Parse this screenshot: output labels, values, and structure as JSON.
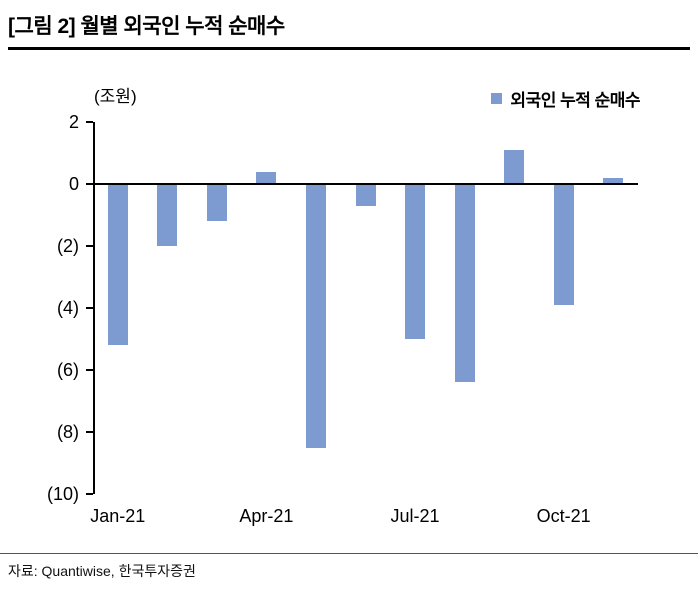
{
  "header": {
    "title": "[그림 2] 월별 외국인 누적 순매수"
  },
  "footer": {
    "source": "자료: Quantiwise, 한국투자증권"
  },
  "chart_data": {
    "type": "bar",
    "title": "[그림 2] 월별 외국인 누적 순매수",
    "unit_label": "(조원)",
    "legend": "외국인 누적 순매수",
    "legend_position": "top-right",
    "grid": false,
    "categories": [
      "Jan-21",
      "Feb-21",
      "Mar-21",
      "Apr-21",
      "May-21",
      "Jun-21",
      "Jul-21",
      "Aug-21",
      "Sep-21",
      "Oct-21",
      "Nov-21"
    ],
    "values": [
      -5.2,
      -2.0,
      -1.2,
      0.4,
      -8.5,
      -0.7,
      -5.0,
      -6.4,
      1.1,
      -3.9,
      0.2
    ],
    "ylim": [
      -10,
      2
    ],
    "ytick_step": 2,
    "ytick_labels": [
      "2",
      "0",
      "(2)",
      "(4)",
      "(6)",
      "(8)",
      "(10)"
    ],
    "xtick_labels": [
      "Jan-21",
      "Apr-21",
      "Jul-21",
      "Oct-21"
    ],
    "bar_color": "#7d9bd0",
    "axis_color": "#000000"
  }
}
